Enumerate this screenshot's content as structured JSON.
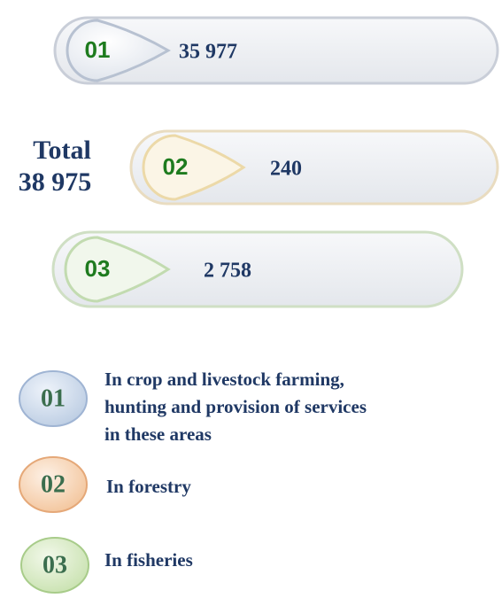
{
  "total": {
    "label": "Total",
    "value": "38 975"
  },
  "items": [
    {
      "number": "01",
      "value": "35 977"
    },
    {
      "number": "02",
      "value": "240"
    },
    {
      "number": "03",
      "value": "2 758"
    }
  ],
  "legend": [
    {
      "number": "01",
      "lines": [
        "In crop and livestock farming,",
        "hunting and provision of services",
        "in these areas"
      ]
    },
    {
      "number": "02",
      "lines": [
        "In forestry"
      ]
    },
    {
      "number": "03",
      "lines": [
        "In fisheries"
      ]
    }
  ]
}
